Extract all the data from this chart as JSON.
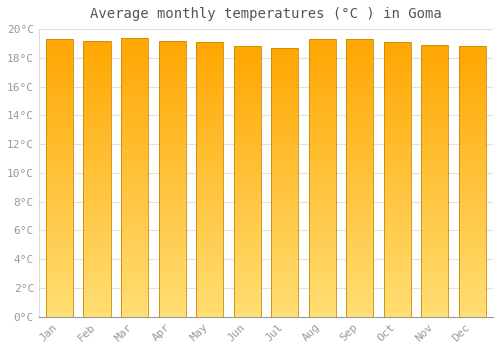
{
  "title": "Average monthly temperatures (°C ) in Goma",
  "months": [
    "Jan",
    "Feb",
    "Mar",
    "Apr",
    "May",
    "Jun",
    "Jul",
    "Aug",
    "Sep",
    "Oct",
    "Nov",
    "Dec"
  ],
  "values": [
    19.3,
    19.2,
    19.4,
    19.2,
    19.1,
    18.8,
    18.7,
    19.3,
    19.3,
    19.1,
    18.9,
    18.8
  ],
  "ylim": [
    0,
    20
  ],
  "yticks": [
    0,
    2,
    4,
    6,
    8,
    10,
    12,
    14,
    16,
    18,
    20
  ],
  "bar_color_bottom": "#FFD966",
  "bar_color_top": "#FFA500",
  "bar_edge_color": "#CC8800",
  "background_color": "#FFFFFF",
  "plot_bg_color": "#FFFFFF",
  "grid_color": "#E0E0E0",
  "text_color": "#999999",
  "title_color": "#555555",
  "title_fontsize": 10,
  "tick_fontsize": 8,
  "font_family": "monospace"
}
